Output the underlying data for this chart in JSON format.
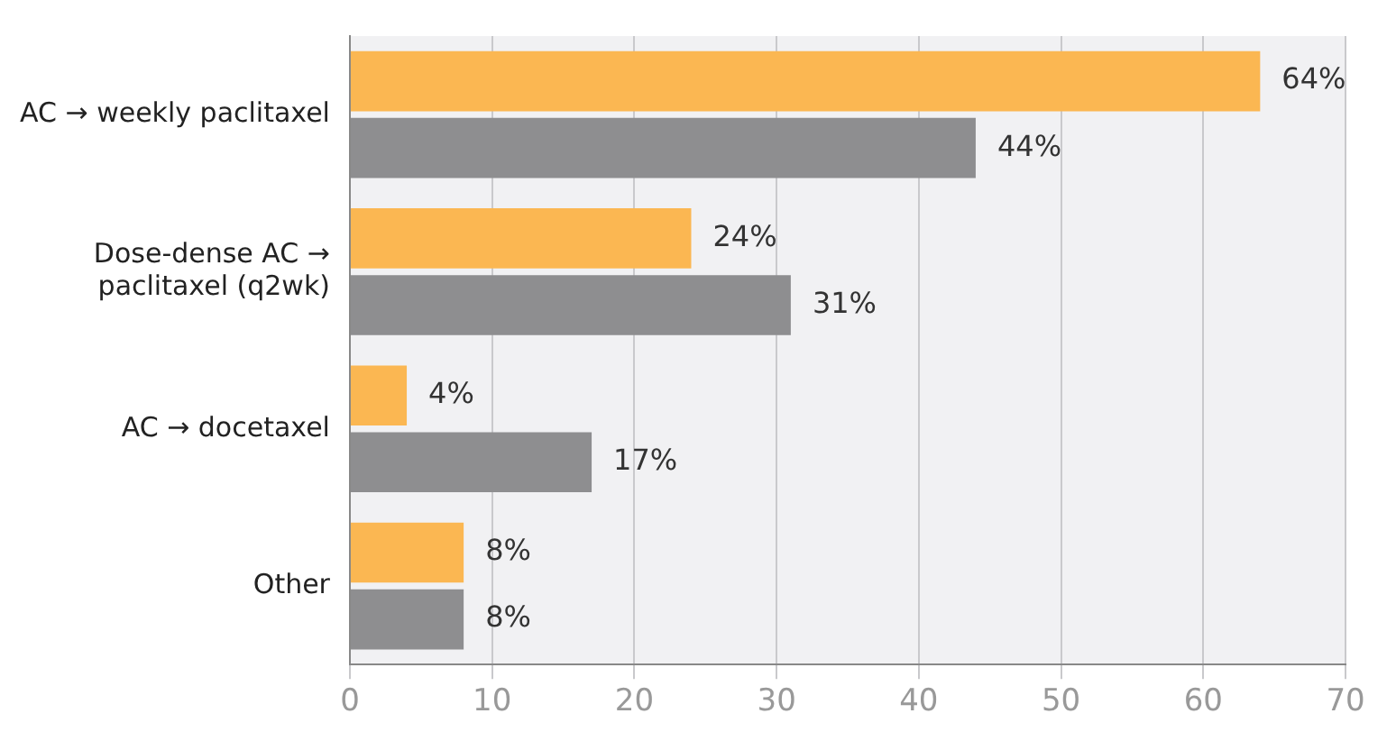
{
  "chart_data": {
    "type": "bar",
    "orientation": "horizontal",
    "categories": [
      "AC → weekly paclitaxel",
      "Dose-dense AC → paclitaxel (q2wk)",
      "AC → docetaxel",
      "Other"
    ],
    "series": [
      {
        "color": "#fbb752",
        "values": [
          64,
          24,
          4,
          8
        ],
        "value_labels": [
          "64%",
          "24%",
          "4%",
          "8%"
        ]
      },
      {
        "color": "#8e8e90",
        "values": [
          44,
          31,
          17,
          8
        ],
        "value_labels": [
          "44%",
          "31%",
          "17%",
          "8%"
        ]
      }
    ],
    "xlim": [
      0,
      70
    ],
    "xticks": [
      0,
      10,
      20,
      30,
      40,
      50,
      60,
      70
    ],
    "grid": "x",
    "legend": false
  }
}
